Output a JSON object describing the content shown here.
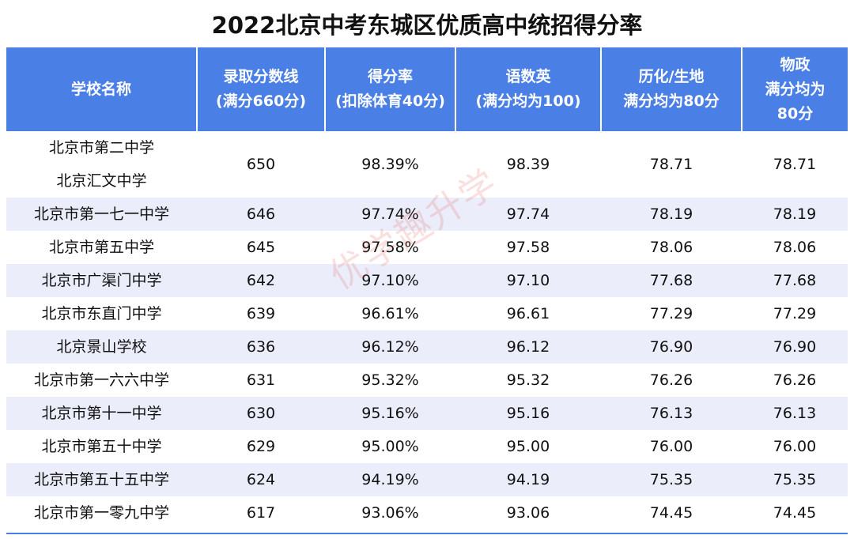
{
  "title": "2022北京中考东城区优质高中统招得分率",
  "columns": [
    [
      "学校名称"
    ],
    [
      "录取分数线",
      "(满分660分)"
    ],
    [
      "得分率",
      "(扣除体育40分)"
    ],
    [
      "语数英",
      "(满分均为100)"
    ],
    [
      "历化/生地",
      "满分均为80分"
    ],
    [
      "物政",
      "满分均为",
      "80分"
    ]
  ],
  "rows": [
    {
      "school": [
        "北京市第二中学",
        "北京汇文中学"
      ],
      "score": "650",
      "rate": "98.39%",
      "core": "98.39",
      "histchem": "78.71",
      "physpol": "78.71"
    },
    {
      "school": [
        "北京市第一七一中学"
      ],
      "score": "646",
      "rate": "97.74%",
      "core": "97.74",
      "histchem": "78.19",
      "physpol": "78.19"
    },
    {
      "school": [
        "北京市第五中学"
      ],
      "score": "645",
      "rate": "97.58%",
      "core": "97.58",
      "histchem": "78.06",
      "physpol": "78.06"
    },
    {
      "school": [
        "北京市广渠门中学"
      ],
      "score": "642",
      "rate": "97.10%",
      "core": "97.10",
      "histchem": "77.68",
      "physpol": "77.68"
    },
    {
      "school": [
        "北京市东直门中学"
      ],
      "score": "639",
      "rate": "96.61%",
      "core": "96.61",
      "histchem": "77.29",
      "physpol": "77.29"
    },
    {
      "school": [
        "北京景山学校"
      ],
      "score": "636",
      "rate": "96.12%",
      "core": "96.12",
      "histchem": "76.90",
      "physpol": "76.90"
    },
    {
      "school": [
        "北京市第一六六中学"
      ],
      "score": "631",
      "rate": "95.32%",
      "core": "95.32",
      "histchem": "76.26",
      "physpol": "76.26"
    },
    {
      "school": [
        "北京市第十一中学"
      ],
      "score": "630",
      "rate": "95.16%",
      "core": "95.16",
      "histchem": "76.13",
      "physpol": "76.13"
    },
    {
      "school": [
        "北京市第五十中学"
      ],
      "score": "629",
      "rate": "95.00%",
      "core": "95.00",
      "histchem": "76.00",
      "physpol": "76.00"
    },
    {
      "school": [
        "北京市第五十五中学"
      ],
      "score": "624",
      "rate": "94.19%",
      "core": "94.19",
      "histchem": "75.35",
      "physpol": "75.35"
    },
    {
      "school": [
        "北京市第一零九中学"
      ],
      "score": "617",
      "rate": "93.06%",
      "core": "93.06",
      "histchem": "74.45",
      "physpol": "74.45"
    }
  ],
  "watermark": "优学趣升学",
  "colors": {
    "header_bg": "#4a7fe6",
    "header_text": "#ffffff",
    "alt_row_bg": "#ebeefa",
    "watermark": "#e15050"
  }
}
